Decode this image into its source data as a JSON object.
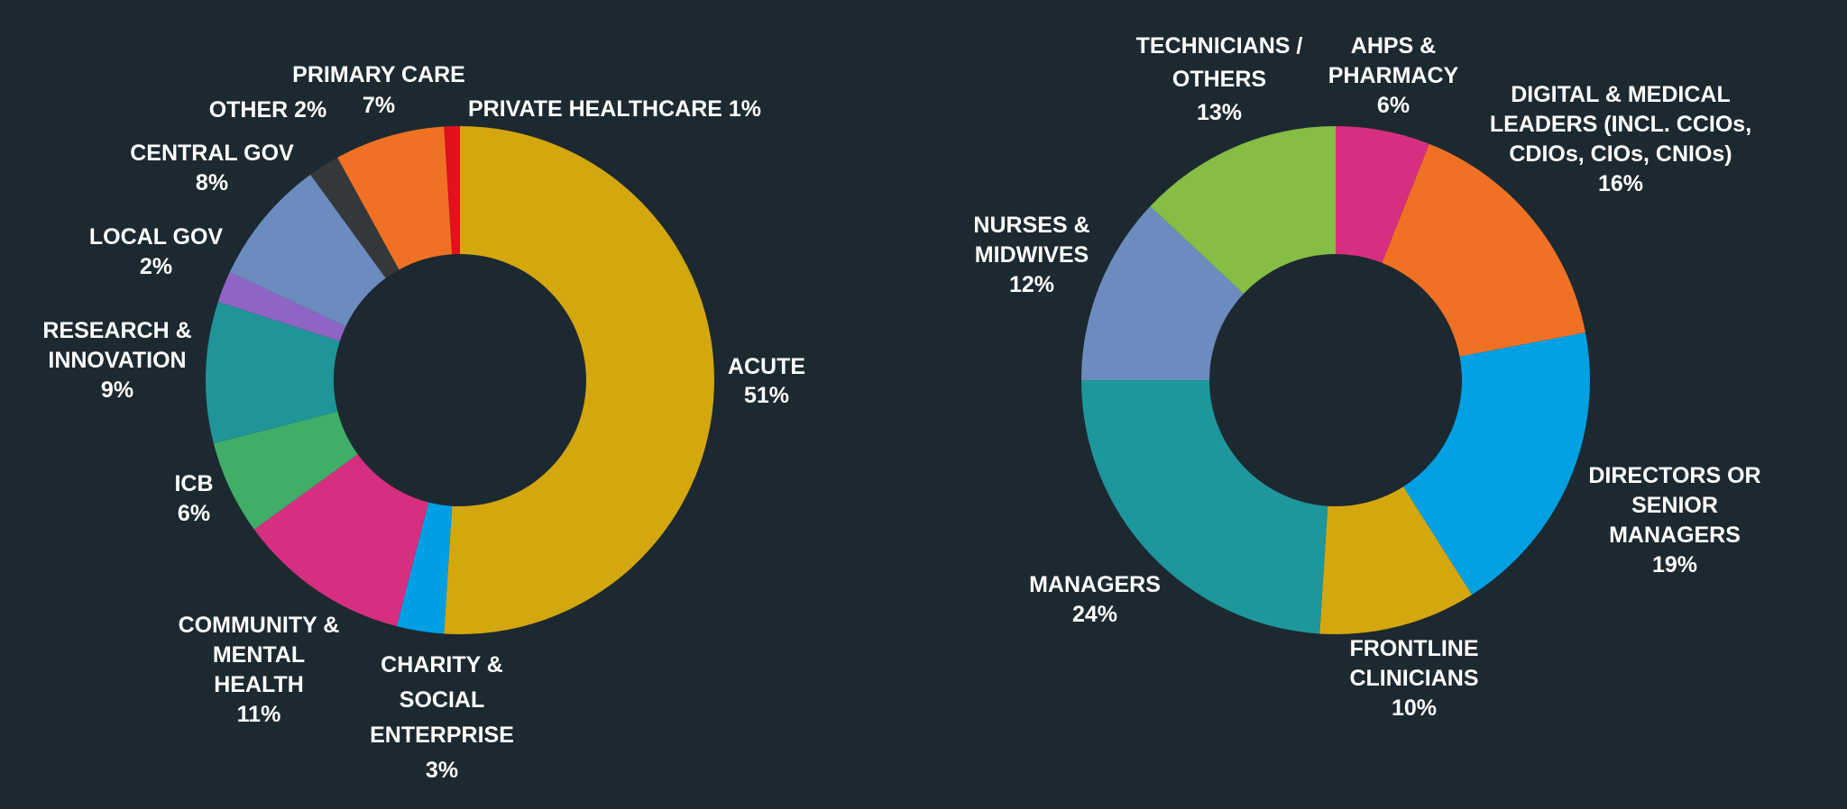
{
  "chart_data": [
    {
      "type": "pie",
      "donut": true,
      "title": "",
      "start_angle_deg": 0,
      "direction": "clockwise",
      "slices": [
        {
          "name": "ACUTE",
          "value": 51,
          "label_lines": [
            "ACUTE",
            "51%"
          ],
          "color": "#d4a70f"
        },
        {
          "name": "CHARITY & SOCIAL ENTERPRISE",
          "value": 3,
          "label_lines": [
            "CHARITY &",
            "SOCIAL",
            "ENTERPRISE",
            "3%"
          ],
          "color": "#009fe3"
        },
        {
          "name": "COMMUNITY & MENTAL HEALTH",
          "value": 11,
          "label_lines": [
            "COMMUNITY &",
            "MENTAL",
            "HEALTH",
            "11%"
          ],
          "color": "#d62f7f"
        },
        {
          "name": "ICB",
          "value": 6,
          "label_lines": [
            "ICB",
            "6%"
          ],
          "color": "#40ad68"
        },
        {
          "name": "RESEARCH & INNOVATION",
          "value": 9,
          "label_lines": [
            "RESEARCH &",
            "INNOVATION",
            "9%"
          ],
          "color": "#1f9499"
        },
        {
          "name": "LOCAL GOV",
          "value": 2,
          "label_lines": [
            "LOCAL GOV",
            "2%"
          ],
          "color": "#8e65c4"
        },
        {
          "name": "CENTRAL GOV",
          "value": 8,
          "label_lines": [
            "CENTRAL GOV",
            "8%"
          ],
          "color": "#6c8bbf"
        },
        {
          "name": "OTHER",
          "value": 2,
          "label_lines": [
            "OTHER 2%"
          ],
          "color": "#34383a"
        },
        {
          "name": "PRIMARY CARE",
          "value": 7,
          "label_lines": [
            "PRIMARY CARE",
            "7%"
          ],
          "color": "#f07124"
        },
        {
          "name": "PRIVATE HEALTHCARE",
          "value": 1,
          "label_lines": [
            "PRIVATE HEALTHCARE 1%"
          ],
          "color": "#e3101d"
        }
      ]
    },
    {
      "type": "pie",
      "donut": true,
      "title": "",
      "start_angle_deg": 0,
      "direction": "clockwise",
      "slices": [
        {
          "name": "AHPS & PHARMACY",
          "value": 6,
          "label_lines": [
            "AHPS &",
            "PHARMACY",
            "6%"
          ],
          "color": "#d62f7f"
        },
        {
          "name": "DIGITAL & MEDICAL LEADERS (INCL. CCIOs, CDIOs, CIOs, CNIOs)",
          "value": 16,
          "label_lines": [
            "DIGITAL & MEDICAL",
            "LEADERS (INCL. CCIOs,",
            "CDIOs, CIOs, CNIOs)",
            "16%"
          ],
          "color": "#f07124"
        },
        {
          "name": "DIRECTORS OR SENIOR MANAGERS",
          "value": 19,
          "label_lines": [
            "DIRECTORS OR",
            "SENIOR",
            "MANAGERS",
            "19%"
          ],
          "color": "#00a0e3"
        },
        {
          "name": "FRONTLINE CLINICIANS",
          "value": 10,
          "label_lines": [
            "FRONTLINE",
            "CLINICIANS",
            "10%"
          ],
          "color": "#d4a70f"
        },
        {
          "name": "MANAGERS",
          "value": 24,
          "label_lines": [
            "MANAGERS",
            "24%"
          ],
          "color": "#1d979b"
        },
        {
          "name": "NURSES & MIDWIVES",
          "value": 12,
          "label_lines": [
            "NURSES &",
            "MIDWIVES",
            "12%"
          ],
          "color": "#6c8bbf"
        },
        {
          "name": "TECHNICIANS / OTHERS",
          "value": 13,
          "label_lines": [
            "TECHNICIANS /",
            "OTHERS",
            "13%"
          ],
          "color": "#86bd45"
        }
      ]
    }
  ]
}
